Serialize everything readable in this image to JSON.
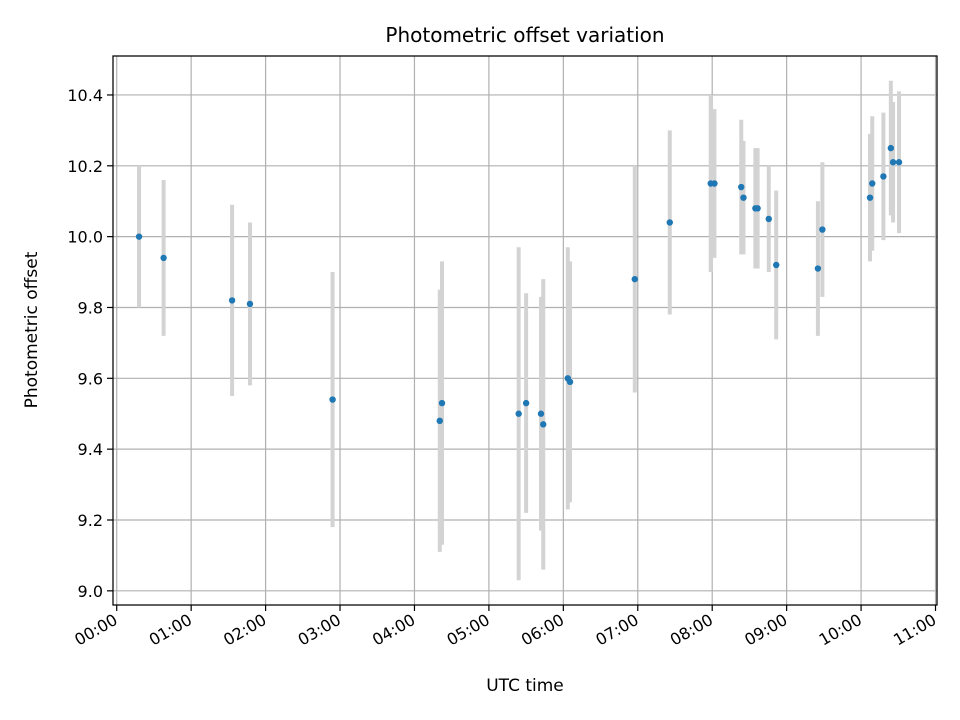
{
  "chart_data": {
    "type": "scatter",
    "title": "Photometric offset variation",
    "xlabel": "UTC time",
    "ylabel": "Photometric offset",
    "x_unit": "hours (UTC)",
    "xlim": [
      -0.05,
      11.02
    ],
    "ylim": [
      8.96,
      10.51
    ],
    "grid": true,
    "x_ticks": [
      0,
      1,
      2,
      3,
      4,
      5,
      6,
      7,
      8,
      9,
      10,
      11
    ],
    "x_tick_labels": [
      "00:00",
      "01:00",
      "02:00",
      "03:00",
      "04:00",
      "05:00",
      "06:00",
      "07:00",
      "08:00",
      "09:00",
      "10:00",
      "11:00"
    ],
    "y_ticks": [
      9.0,
      9.2,
      9.4,
      9.6,
      9.8,
      10.0,
      10.2,
      10.4
    ],
    "y_tick_labels": [
      "9.0",
      "9.2",
      "9.4",
      "9.6",
      "9.8",
      "10.0",
      "10.2",
      "10.4"
    ],
    "colors": {
      "point": "#1f77b4",
      "errorbar": "#d3d3d3",
      "grid": "#b0b0b0"
    },
    "points": [
      {
        "x": 0.3,
        "y": 10.0,
        "yerr": 0.2
      },
      {
        "x": 0.63,
        "y": 9.94,
        "yerr": 0.22
      },
      {
        "x": 1.55,
        "y": 9.82,
        "yerr": 0.27
      },
      {
        "x": 1.79,
        "y": 9.81,
        "yerr": 0.23
      },
      {
        "x": 2.9,
        "y": 9.54,
        "yerr": 0.36
      },
      {
        "x": 4.34,
        "y": 9.48,
        "yerr": 0.37
      },
      {
        "x": 4.37,
        "y": 9.53,
        "yerr": 0.4
      },
      {
        "x": 5.4,
        "y": 9.5,
        "yerr": 0.47
      },
      {
        "x": 5.5,
        "y": 9.53,
        "yerr": 0.31
      },
      {
        "x": 5.7,
        "y": 9.5,
        "yerr": 0.33
      },
      {
        "x": 5.73,
        "y": 9.47,
        "yerr": 0.41
      },
      {
        "x": 6.06,
        "y": 9.6,
        "yerr": 0.37
      },
      {
        "x": 6.09,
        "y": 9.59,
        "yerr": 0.34
      },
      {
        "x": 6.96,
        "y": 9.88,
        "yerr": 0.32
      },
      {
        "x": 7.43,
        "y": 10.04,
        "yerr": 0.26
      },
      {
        "x": 7.98,
        "y": 10.15,
        "yerr": 0.25
      },
      {
        "x": 8.03,
        "y": 10.15,
        "yerr": 0.21
      },
      {
        "x": 8.39,
        "y": 10.14,
        "yerr": 0.19
      },
      {
        "x": 8.42,
        "y": 10.11,
        "yerr": 0.16
      },
      {
        "x": 8.58,
        "y": 10.08,
        "yerr": 0.17
      },
      {
        "x": 8.61,
        "y": 10.08,
        "yerr": 0.17
      },
      {
        "x": 8.76,
        "y": 10.05,
        "yerr": 0.15
      },
      {
        "x": 8.86,
        "y": 9.92,
        "yerr": 0.21
      },
      {
        "x": 9.42,
        "y": 9.91,
        "yerr": 0.19
      },
      {
        "x": 9.48,
        "y": 10.02,
        "yerr": 0.19
      },
      {
        "x": 10.12,
        "y": 10.11,
        "yerr": 0.18
      },
      {
        "x": 10.15,
        "y": 10.15,
        "yerr": 0.19
      },
      {
        "x": 10.3,
        "y": 10.17,
        "yerr": 0.18
      },
      {
        "x": 10.4,
        "y": 10.25,
        "yerr": 0.19
      },
      {
        "x": 10.43,
        "y": 10.21,
        "yerr": 0.17
      },
      {
        "x": 10.51,
        "y": 10.21,
        "yerr": 0.2
      }
    ]
  }
}
